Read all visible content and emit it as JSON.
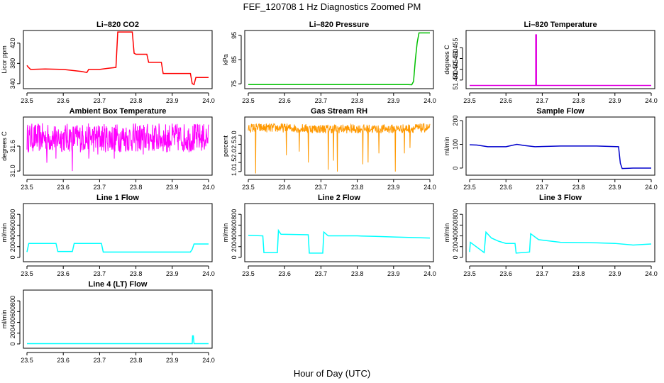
{
  "figure": {
    "title": "FEF_120708  1 Hz Diagnostics Zoomed PM",
    "xlabel": "Hour of Day (UTC)"
  },
  "chart_data": [
    {
      "type": "line",
      "title": "Li–820 CO2",
      "ylabel": "Licor ppm",
      "color": "#ff0000",
      "xlim": [
        23.5,
        24.0
      ],
      "ylim": [
        330,
        445
      ],
      "xticks": [
        23.5,
        23.6,
        23.7,
        23.8,
        23.9,
        24.0
      ],
      "xtick_labels": [
        "23.5",
        "23.6",
        "23.7",
        "23.8",
        "23.9",
        "24.0"
      ],
      "yticks": [
        340,
        380,
        420
      ],
      "ytick_labels": [
        "340",
        "380",
        "420"
      ],
      "series": [
        {
          "name": "CO2",
          "x": [
            23.5,
            23.503,
            23.51,
            23.55,
            23.6,
            23.65,
            23.665,
            23.67,
            23.7,
            23.72,
            23.745,
            23.75,
            23.79,
            23.795,
            23.8,
            23.83,
            23.835,
            23.87,
            23.875,
            23.95,
            23.955,
            23.96,
            23.965,
            24.0
          ],
          "y": [
            376,
            373,
            368,
            369,
            368,
            364,
            362,
            368,
            368,
            370,
            372,
            442,
            442,
            400,
            398,
            398,
            382,
            382,
            360,
            360,
            340,
            338,
            352,
            352
          ]
        }
      ]
    },
    {
      "type": "line",
      "title": "Li–820 Pressure",
      "ylabel": "kPa",
      "color": "#00c000",
      "xlim": [
        23.5,
        24.0
      ],
      "ylim": [
        73,
        97
      ],
      "xticks": [
        23.5,
        23.6,
        23.7,
        23.8,
        23.9,
        24.0
      ],
      "xtick_labels": [
        "23.5",
        "23.6",
        "23.7",
        "23.8",
        "23.9",
        "24.0"
      ],
      "yticks": [
        75,
        85,
        95
      ],
      "ytick_labels": [
        "75",
        "85",
        "95"
      ],
      "series": [
        {
          "name": "Pressure",
          "x": [
            23.5,
            23.94,
            23.95,
            23.955,
            23.96,
            23.965,
            23.97,
            24.0
          ],
          "y": [
            74.7,
            74.7,
            74.6,
            76,
            85,
            92,
            96,
            96
          ]
        }
      ]
    },
    {
      "type": "line",
      "title": "Li–820 Temperature",
      "ylabel": "degrees C",
      "color": "#e000e0",
      "xlim": [
        23.5,
        24.0
      ],
      "ylim": [
        51.436,
        51.463
      ],
      "xticks": [
        23.5,
        23.6,
        23.7,
        23.8,
        23.9,
        24.0
      ],
      "xtick_labels": [
        "23.5",
        "23.6",
        "23.7",
        "23.8",
        "23.9",
        "24.0"
      ],
      "yticks": [
        51.44,
        51.445,
        51.45,
        51.455
      ],
      "ytick_labels": [
        "51.440",
        "51.445",
        "51.450",
        "51.455"
      ],
      "series": [
        {
          "name": "Temperature",
          "x": [
            23.5,
            23.682,
            23.682,
            23.684,
            23.684,
            24.0
          ],
          "y": [
            51.4375,
            51.4375,
            51.461,
            51.461,
            51.4375,
            51.4375
          ]
        }
      ]
    },
    {
      "type": "line",
      "title": "Ambient Box Temperature",
      "ylabel": "degrees C",
      "color": "#ff00ff",
      "xlim": [
        23.5,
        24.0
      ],
      "ylim": [
        30.9,
        32.3
      ],
      "xticks": [
        23.5,
        23.6,
        23.7,
        23.8,
        23.9,
        24.0
      ],
      "xtick_labels": [
        "23.5",
        "23.6",
        "23.7",
        "23.8",
        "23.9",
        "24.0"
      ],
      "yticks": [
        31.0,
        31.6
      ],
      "ytick_labels": [
        "31.0",
        "31.6"
      ],
      "series": [
        {
          "name": "Box temperature",
          "noise": "high",
          "x": [
            23.5,
            23.55,
            23.6,
            23.65,
            23.7,
            23.75,
            23.8,
            23.85,
            23.9,
            23.95,
            24.0
          ],
          "y": [
            31.8,
            31.8,
            31.8,
            31.8,
            31.8,
            31.8,
            31.8,
            31.8,
            31.8,
            31.8,
            31.8
          ],
          "spread": 0.35,
          "dips": [
            [
              23.555,
              31.2
            ],
            [
              23.58,
              31.3
            ],
            [
              23.625,
              31.0
            ],
            [
              23.67,
              31.3
            ],
            [
              23.695,
              31.4
            ],
            [
              23.74,
              31.3
            ],
            [
              23.82,
              31.4
            ],
            [
              23.885,
              31.45
            ],
            [
              23.96,
              31.5
            ]
          ]
        }
      ]
    },
    {
      "type": "line",
      "title": "Gas Stream RH",
      "ylabel": "percent",
      "color": "#ff9900",
      "xlim": [
        23.5,
        24.0
      ],
      "ylim": [
        0.8,
        4.0
      ],
      "xticks": [
        23.5,
        23.6,
        23.7,
        23.8,
        23.9,
        24.0
      ],
      "xtick_labels": [
        "23.5",
        "23.6",
        "23.7",
        "23.8",
        "23.9",
        "24.0"
      ],
      "yticks": [
        1.0,
        1.5,
        2.0,
        2.5,
        3.0
      ],
      "ytick_labels": [
        "1.0",
        "1.5",
        "2.0",
        "2.5",
        "3.0"
      ],
      "series": [
        {
          "name": "RH",
          "noise": "medium",
          "x": [
            23.5,
            23.6,
            23.7,
            23.8,
            23.9,
            24.0
          ],
          "y": [
            3.4,
            3.4,
            3.35,
            3.35,
            3.35,
            3.4
          ],
          "spread": 0.25,
          "dips": [
            [
              23.52,
              0.9
            ],
            [
              23.605,
              1.9
            ],
            [
              23.64,
              2.1
            ],
            [
              23.665,
              1.5
            ],
            [
              23.72,
              1.1
            ],
            [
              23.735,
              1.6
            ],
            [
              23.745,
              1.0
            ],
            [
              23.815,
              1.4
            ],
            [
              23.83,
              1.5
            ],
            [
              23.86,
              2.0
            ],
            [
              23.905,
              1.0
            ],
            [
              23.93,
              2.0
            ],
            [
              23.945,
              2.3
            ]
          ]
        }
      ]
    },
    {
      "type": "line",
      "title": "Sample Flow",
      "ylabel": "ml/min",
      "color": "#0000cc",
      "xlim": [
        23.5,
        24.0
      ],
      "ylim": [
        -30,
        215
      ],
      "xticks": [
        23.5,
        23.6,
        23.7,
        23.8,
        23.9,
        24.0
      ],
      "xtick_labels": [
        "23.5",
        "23.6",
        "23.7",
        "23.8",
        "23.9",
        "24.0"
      ],
      "yticks": [
        0,
        100,
        200
      ],
      "ytick_labels": [
        "0",
        "100",
        "200"
      ],
      "series": [
        {
          "name": "Sample flow",
          "x": [
            23.5,
            23.52,
            23.55,
            23.6,
            23.63,
            23.65,
            23.68,
            23.75,
            23.85,
            23.91,
            23.915,
            23.92,
            23.95,
            24.0
          ],
          "y": [
            98,
            97,
            90,
            90,
            100,
            95,
            90,
            93,
            93,
            90,
            20,
            -2,
            0,
            0
          ]
        }
      ]
    },
    {
      "type": "line",
      "title": "Line 1 Flow",
      "ylabel": "ml/min",
      "color": "#00ffff",
      "xlim": [
        23.5,
        24.0
      ],
      "ylim": [
        -80,
        1000
      ],
      "xticks": [
        23.5,
        23.6,
        23.7,
        23.8,
        23.9,
        24.0
      ],
      "xtick_labels": [
        "23.5",
        "23.6",
        "23.7",
        "23.8",
        "23.9",
        "24.0"
      ],
      "yticks": [
        0,
        200,
        400,
        600,
        800
      ],
      "ytick_labels": [
        "0",
        "200",
        "400",
        "600",
        "800"
      ],
      "series": [
        {
          "name": "Line 1",
          "x": [
            23.5,
            23.505,
            23.58,
            23.585,
            23.625,
            23.63,
            23.705,
            23.71,
            23.95,
            23.955,
            23.96,
            24.0
          ],
          "y": [
            100,
            260,
            260,
            110,
            110,
            260,
            260,
            100,
            100,
            150,
            250,
            250
          ]
        }
      ]
    },
    {
      "type": "line",
      "title": "Line 2 Flow",
      "ylabel": "ml/min",
      "color": "#00ffff",
      "xlim": [
        23.5,
        24.0
      ],
      "ylim": [
        -80,
        1000
      ],
      "xticks": [
        23.5,
        23.6,
        23.7,
        23.8,
        23.9,
        24.0
      ],
      "xtick_labels": [
        "23.5",
        "23.6",
        "23.7",
        "23.8",
        "23.9",
        "24.0"
      ],
      "yticks": [
        0,
        200,
        400,
        600,
        800
      ],
      "ytick_labels": [
        "0",
        "200",
        "400",
        "600",
        "800"
      ],
      "series": [
        {
          "name": "Line 2",
          "x": [
            23.5,
            23.54,
            23.543,
            23.58,
            23.583,
            23.59,
            23.665,
            23.668,
            23.705,
            23.708,
            23.72,
            23.8,
            23.85,
            23.9,
            24.0
          ],
          "y": [
            410,
            400,
            90,
            90,
            500,
            430,
            420,
            80,
            80,
            470,
            400,
            400,
            390,
            380,
            360
          ]
        }
      ]
    },
    {
      "type": "line",
      "title": "Line 3 Flow",
      "ylabel": "ml/min",
      "color": "#00ffff",
      "xlim": [
        23.5,
        24.0
      ],
      "ylim": [
        -80,
        1000
      ],
      "xticks": [
        23.5,
        23.6,
        23.7,
        23.8,
        23.9,
        24.0
      ],
      "xtick_labels": [
        "23.5",
        "23.6",
        "23.7",
        "23.8",
        "23.9",
        "24.0"
      ],
      "yticks": [
        0,
        200,
        400,
        600,
        800
      ],
      "ytick_labels": [
        "0",
        "200",
        "400",
        "600",
        "800"
      ],
      "series": [
        {
          "name": "Line 3",
          "x": [
            23.5,
            23.502,
            23.54,
            23.545,
            23.56,
            23.58,
            23.6,
            23.625,
            23.628,
            23.665,
            23.668,
            23.69,
            23.75,
            23.85,
            23.9,
            23.95,
            24.0
          ],
          "y": [
            100,
            280,
            90,
            470,
            360,
            300,
            260,
            260,
            80,
            100,
            440,
            330,
            280,
            270,
            260,
            230,
            250
          ]
        }
      ]
    },
    {
      "type": "line",
      "title": "Line 4 (LT) Flow",
      "ylabel": "ml/min",
      "color": "#00ffff",
      "xlim": [
        23.5,
        24.0
      ],
      "ylim": [
        -80,
        1000
      ],
      "xticks": [
        23.5,
        23.6,
        23.7,
        23.8,
        23.9,
        24.0
      ],
      "xtick_labels": [
        "23.5",
        "23.6",
        "23.7",
        "23.8",
        "23.9",
        "24.0"
      ],
      "yticks": [
        0,
        200,
        400,
        600,
        800
      ],
      "ytick_labels": [
        "0",
        "200",
        "400",
        "600",
        "800"
      ],
      "series": [
        {
          "name": "Line 4",
          "x": [
            23.5,
            23.955,
            23.956,
            23.958,
            23.96,
            24.0
          ],
          "y": [
            5,
            5,
            150,
            150,
            5,
            5
          ]
        }
      ]
    }
  ]
}
